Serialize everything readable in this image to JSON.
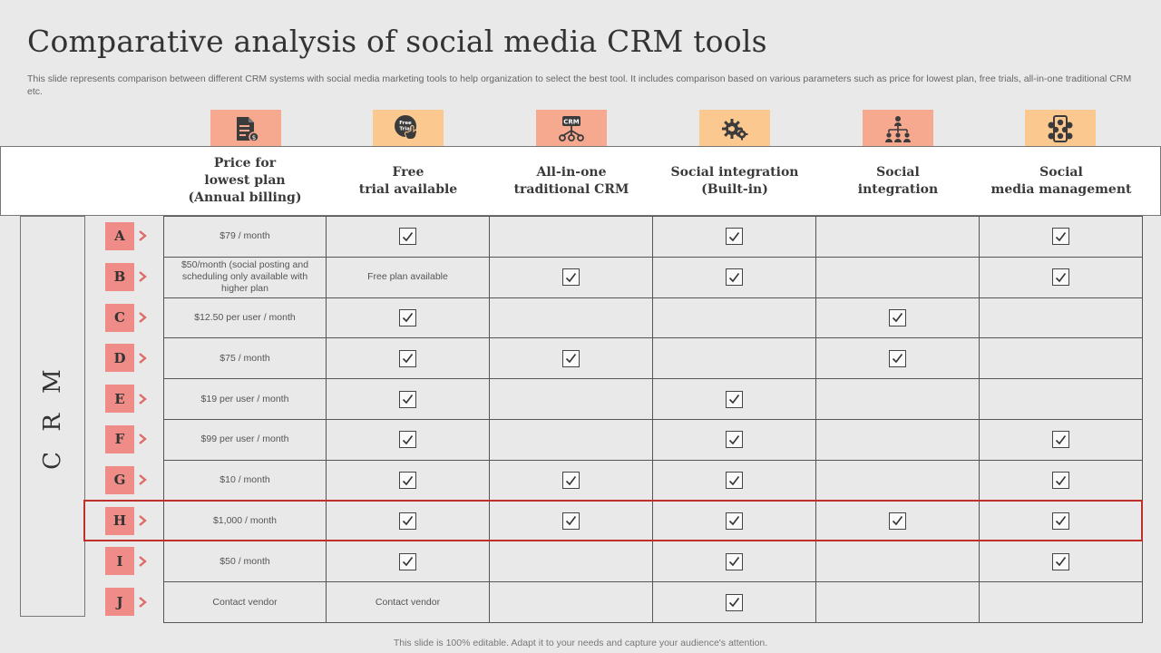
{
  "title": "Comparative analysis of social media CRM tools",
  "subtitle": "This slide represents comparison between different CRM systems with social media marketing tools to help organization to select the best tool. It includes comparison based on various parameters such as price for lowest plan, free trials, all-in-one traditional CRM etc.",
  "side_label": "C R M",
  "colors": {
    "peach_dark": "#f7a98f",
    "peach_light": "#fbc98f",
    "letter_bg": "#f08c87",
    "chevron": "#e06a66",
    "highlight": "#c0302a"
  },
  "columns": [
    {
      "label": "Price for\nlowest plan\n(Annual billing)",
      "icon": "document-price-icon"
    },
    {
      "label": "Free\ntrial available",
      "icon": "free-trial-icon",
      "icon_text": "Free Trial"
    },
    {
      "label": "All-in-one\ntraditional CRM",
      "icon": "crm-network-icon",
      "icon_text": "CRM"
    },
    {
      "label": "Social integration\n(Built-in)",
      "icon": "gears-icon"
    },
    {
      "label": "Social\nintegration",
      "icon": "team-hierarchy-icon"
    },
    {
      "label": "Social\nmedia management",
      "icon": "social-media-icon"
    }
  ],
  "rows": [
    {
      "letter": "A",
      "price": "$79 / month",
      "free_trial": true,
      "free_trial_text": "",
      "all_in_one": false,
      "social_builtin": true,
      "social_integration": false,
      "social_media_mgmt": true
    },
    {
      "letter": "B",
      "price": "$50/month  (social posting and scheduling only available with higher plan",
      "free_trial": false,
      "free_trial_text": "Free plan available",
      "all_in_one": true,
      "social_builtin": true,
      "social_integration": false,
      "social_media_mgmt": true
    },
    {
      "letter": "C",
      "price": "$12.50 per user / month",
      "free_trial": true,
      "free_trial_text": "",
      "all_in_one": false,
      "social_builtin": false,
      "social_integration": true,
      "social_media_mgmt": false
    },
    {
      "letter": "D",
      "price": "$75 / month",
      "free_trial": true,
      "free_trial_text": "",
      "all_in_one": true,
      "social_builtin": false,
      "social_integration": true,
      "social_media_mgmt": false
    },
    {
      "letter": "E",
      "price": "$19 per user / month",
      "free_trial": true,
      "free_trial_text": "",
      "all_in_one": false,
      "social_builtin": true,
      "social_integration": false,
      "social_media_mgmt": false
    },
    {
      "letter": "F",
      "price": "$99 per user / month",
      "free_trial": true,
      "free_trial_text": "",
      "all_in_one": false,
      "social_builtin": true,
      "social_integration": false,
      "social_media_mgmt": true
    },
    {
      "letter": "G",
      "price": "$10 / month",
      "free_trial": true,
      "free_trial_text": "",
      "all_in_one": true,
      "social_builtin": true,
      "social_integration": false,
      "social_media_mgmt": true
    },
    {
      "letter": "H",
      "price": "$1,000 / month",
      "free_trial": true,
      "free_trial_text": "",
      "all_in_one": true,
      "social_builtin": true,
      "social_integration": true,
      "social_media_mgmt": true,
      "highlighted": true
    },
    {
      "letter": "I",
      "price": "$50 / month",
      "free_trial": true,
      "free_trial_text": "",
      "all_in_one": false,
      "social_builtin": true,
      "social_integration": false,
      "social_media_mgmt": true
    },
    {
      "letter": "J",
      "price": "Contact vendor",
      "free_trial": false,
      "free_trial_text": "Contact vendor",
      "all_in_one": false,
      "social_builtin": true,
      "social_integration": false,
      "social_media_mgmt": false
    }
  ],
  "footer": "This slide is 100% editable. Adapt it to your needs and capture your audience's attention."
}
